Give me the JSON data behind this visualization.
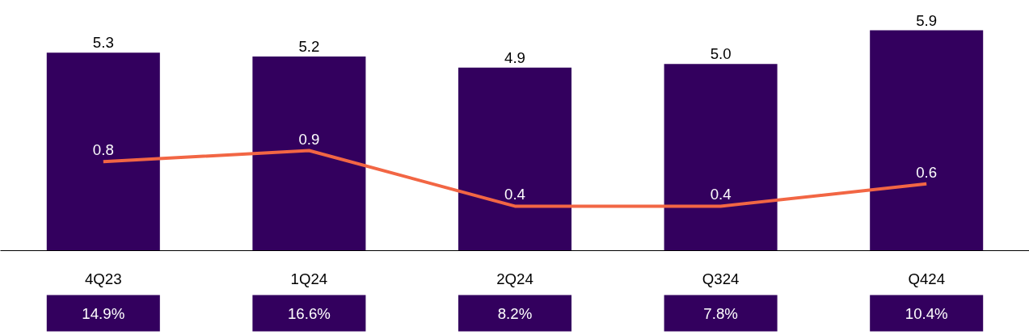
{
  "chart_data": {
    "type": "bar",
    "categories": [
      "4Q23",
      "1Q24",
      "2Q24",
      "Q324",
      "Q424"
    ],
    "series": [
      {
        "color": "#33005e",
        "values": [
          5.3,
          5.2,
          4.9,
          5.0,
          5.9
        ],
        "value_labels": [
          "5.3",
          "5.2",
          "4.9",
          "5.0",
          "5.9"
        ]
      },
      {
        "type": "line",
        "axis": "y2",
        "color": "#f26644",
        "values": [
          0.8,
          0.9,
          0.4,
          0.4,
          0.6
        ],
        "value_labels": [
          "0.8",
          "0.9",
          "0.4",
          "0.4",
          "0.6"
        ]
      }
    ],
    "grid": false,
    "tick_labels": "x",
    "marker": "none",
    "line_style": "solid",
    "annotations": [
      "14.9%",
      "16.6%",
      "8.2%",
      "7.8%",
      "10.4%"
    ]
  }
}
